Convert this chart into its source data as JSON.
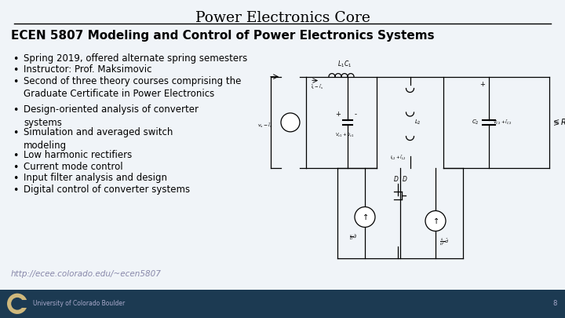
{
  "title": "Power Electronics Core",
  "subtitle": "ECEN 5807 Modeling and Control of Power Electronics Systems",
  "bullets_top": [
    "Spring 2019, offered alternate spring semesters",
    "Instructor: Prof. Maksimovic",
    "Second of three theory courses comprising the\nGraduate Certificate in Power Electronics"
  ],
  "bullets_bottom": [
    "Design-oriented analysis of converter\nsystems",
    "Simulation and averaged switch\nmodeling",
    "Low harmonic rectifiers",
    "Current mode control",
    "Input filter analysis and design",
    "Digital control of converter systems"
  ],
  "link": "http://ecee.colorado.edu/~ecen5807",
  "footer_text": "University of Colorado Boulder",
  "footer_bg": "#1c3a52",
  "background_color": "#f0f4f8",
  "title_color": "#000000",
  "subtitle_color": "#000000",
  "bullet_color": "#000000",
  "link_color": "#8888aa",
  "footer_text_color": "#aaaacc",
  "page_number": "8",
  "line_color": "#000000",
  "logo_gold": "#CFB87C"
}
